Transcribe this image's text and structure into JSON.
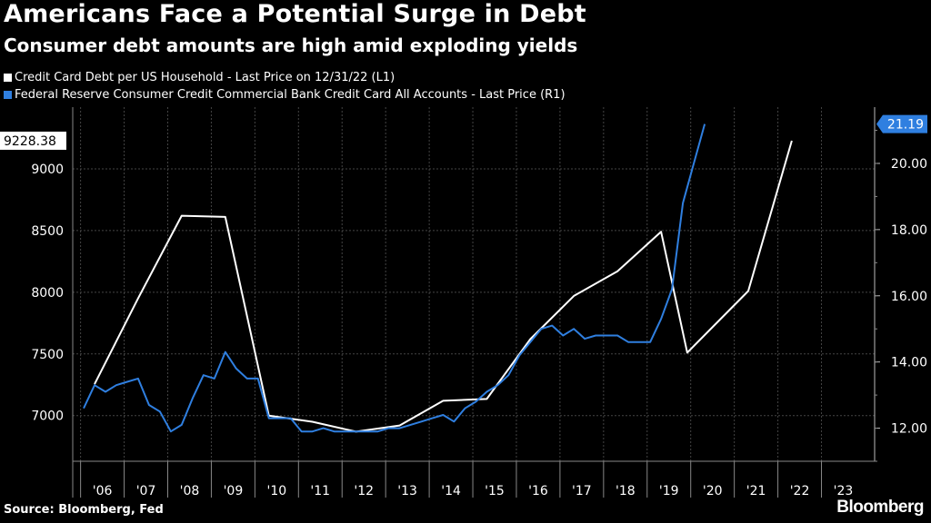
{
  "header": {
    "title": "Americans Face a Potential Surge in Debt",
    "subtitle": "Consumer debt amounts are high amid exploding yields"
  },
  "footer": {
    "source": "Source: Bloomberg, Fed",
    "logo": "Bloomberg"
  },
  "colors": {
    "background": "#000000",
    "series_white": "#ffffff",
    "series_blue": "#2f7fe0",
    "grid": "#444444"
  },
  "chart_data": {
    "type": "line",
    "title": "Americans Face a Potential Surge in Debt",
    "subtitle": "Consumer debt amounts are high amid exploding yields",
    "grid": true,
    "legend_placement": "top-left",
    "x_ticks": [
      "'06",
      "'07",
      "'08",
      "'09",
      "'10",
      "'11",
      "'12",
      "'13",
      "'14",
      "'15",
      "'16",
      "'17",
      "'18",
      "'19",
      "'20",
      "'21",
      "'22",
      "'23"
    ],
    "x_range": [
      2005.5,
      2023.9
    ],
    "y_left": {
      "ticks": [
        "7000",
        "7500",
        "8000",
        "8500",
        "9000"
      ],
      "ylim": [
        6630,
        9500
      ]
    },
    "y_right": {
      "ticks": [
        "12.00",
        "14.00",
        "16.00",
        "18.00",
        "20.00"
      ],
      "ylim": [
        11.0,
        21.7
      ]
    },
    "series": [
      {
        "name": "Credit Card Debt per US Household - Last Price on 12/31/22 (L1)",
        "axis": "left",
        "color": "#ffffff",
        "last_label": "9228.38",
        "points": [
          [
            2006.0,
            7255
          ],
          [
            2007.0,
            7950
          ],
          [
            2008.0,
            8620
          ],
          [
            2009.0,
            8610
          ],
          [
            2010.0,
            7000
          ],
          [
            2011.0,
            6950
          ],
          [
            2012.0,
            6870
          ],
          [
            2013.0,
            6920
          ],
          [
            2014.0,
            7120
          ],
          [
            2015.0,
            7135
          ],
          [
            2016.0,
            7620
          ],
          [
            2017.0,
            7970
          ],
          [
            2018.0,
            8170
          ],
          [
            2019.0,
            8490
          ],
          [
            2019.6,
            7510
          ],
          [
            2021.0,
            8010
          ],
          [
            2022.0,
            9228
          ]
        ]
      },
      {
        "name": "Federal Reserve Consumer Credit Commercial Bank Credit Card All Accounts - Last Price (R1)",
        "axis": "right",
        "color": "#2f7fe0",
        "last_label": "21.19",
        "points": [
          [
            2005.75,
            12.6
          ],
          [
            2006.0,
            13.3
          ],
          [
            2006.25,
            13.1
          ],
          [
            2006.5,
            13.3
          ],
          [
            2006.75,
            13.4
          ],
          [
            2007.0,
            13.5
          ],
          [
            2007.25,
            12.7
          ],
          [
            2007.5,
            12.5
          ],
          [
            2007.75,
            11.9
          ],
          [
            2008.0,
            12.1
          ],
          [
            2008.25,
            12.9
          ],
          [
            2008.5,
            13.6
          ],
          [
            2008.75,
            13.5
          ],
          [
            2009.0,
            14.3
          ],
          [
            2009.25,
            13.8
          ],
          [
            2009.5,
            13.5
          ],
          [
            2009.75,
            13.5
          ],
          [
            2010.0,
            12.3
          ],
          [
            2010.25,
            12.3
          ],
          [
            2010.5,
            12.3
          ],
          [
            2010.75,
            11.9
          ],
          [
            2011.0,
            11.9
          ],
          [
            2011.25,
            12.0
          ],
          [
            2011.5,
            11.9
          ],
          [
            2011.75,
            11.9
          ],
          [
            2012.0,
            11.9
          ],
          [
            2012.25,
            11.9
          ],
          [
            2012.5,
            11.9
          ],
          [
            2012.75,
            12.0
          ],
          [
            2013.0,
            12.0
          ],
          [
            2013.25,
            12.1
          ],
          [
            2013.5,
            12.2
          ],
          [
            2013.75,
            12.3
          ],
          [
            2014.0,
            12.4
          ],
          [
            2014.25,
            12.2
          ],
          [
            2014.5,
            12.6
          ],
          [
            2014.75,
            12.8
          ],
          [
            2015.0,
            13.1
          ],
          [
            2015.25,
            13.3
          ],
          [
            2015.5,
            13.6
          ],
          [
            2015.75,
            14.2
          ],
          [
            2016.0,
            14.6
          ],
          [
            2016.25,
            15.0
          ],
          [
            2016.5,
            15.1
          ],
          [
            2016.75,
            14.8
          ],
          [
            2017.0,
            15.0
          ],
          [
            2017.25,
            14.7
          ],
          [
            2017.5,
            14.8
          ],
          [
            2017.75,
            14.8
          ],
          [
            2018.0,
            14.8
          ],
          [
            2018.25,
            14.6
          ],
          [
            2018.5,
            14.6
          ],
          [
            2018.75,
            14.6
          ],
          [
            2019.0,
            15.3
          ],
          [
            2019.25,
            16.2
          ],
          [
            2019.5,
            18.8
          ],
          [
            2019.75,
            20.0
          ],
          [
            2020.0,
            21.19
          ]
        ]
      }
    ]
  }
}
